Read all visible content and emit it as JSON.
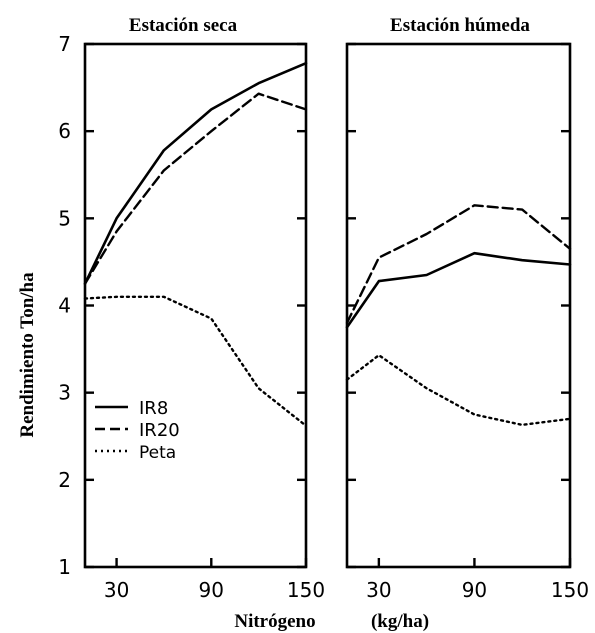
{
  "chart_data": [
    {
      "type": "line",
      "title": "Estación seca",
      "x": [
        10,
        30,
        60,
        90,
        120,
        150
      ],
      "xticks": [
        30,
        90,
        150
      ],
      "ylim": [
        1,
        7
      ],
      "xlim": [
        10,
        150
      ],
      "yticks": [
        1,
        2,
        3,
        4,
        5,
        6,
        7
      ],
      "series": [
        {
          "name": "IR8",
          "style": "solid",
          "values": [
            4.25,
            5.0,
            5.78,
            6.25,
            6.55,
            6.78
          ]
        },
        {
          "name": "IR20",
          "style": "dashed",
          "values": [
            4.25,
            4.85,
            5.55,
            6.0,
            6.43,
            6.25
          ]
        },
        {
          "name": "Peta",
          "style": "dotted",
          "values": [
            4.08,
            4.1,
            4.1,
            3.85,
            3.05,
            2.62
          ]
        }
      ]
    },
    {
      "type": "line",
      "title": "Estación húmeda",
      "x": [
        10,
        30,
        60,
        90,
        120,
        150
      ],
      "xticks": [
        30,
        90,
        150
      ],
      "ylim": [
        1,
        7
      ],
      "xlim": [
        10,
        150
      ],
      "yticks": [
        1,
        2,
        3,
        4,
        5,
        6,
        7
      ],
      "series": [
        {
          "name": "IR8",
          "style": "solid",
          "values": [
            3.75,
            4.28,
            4.35,
            4.6,
            4.52,
            4.47
          ]
        },
        {
          "name": "IR20",
          "style": "dashed",
          "values": [
            3.8,
            4.55,
            4.82,
            5.15,
            5.1,
            4.65
          ]
        },
        {
          "name": "Peta",
          "style": "dotted",
          "values": [
            3.15,
            3.43,
            3.05,
            2.75,
            2.63,
            2.7
          ]
        }
      ]
    }
  ],
  "ylabel": "Rendimiento  Ton/ha",
  "xlabel_name": "Nitrógeno",
  "xlabel_unit": "(kg/ha)",
  "legend": {
    "placement": "lower-left of left panel",
    "items": [
      {
        "label": "IR8",
        "style": "solid"
      },
      {
        "label": "IR20",
        "style": "dashed"
      },
      {
        "label": "Peta",
        "style": "dotted"
      }
    ]
  },
  "colors": {
    "ink": "#000000",
    "background": "#ffffff"
  }
}
